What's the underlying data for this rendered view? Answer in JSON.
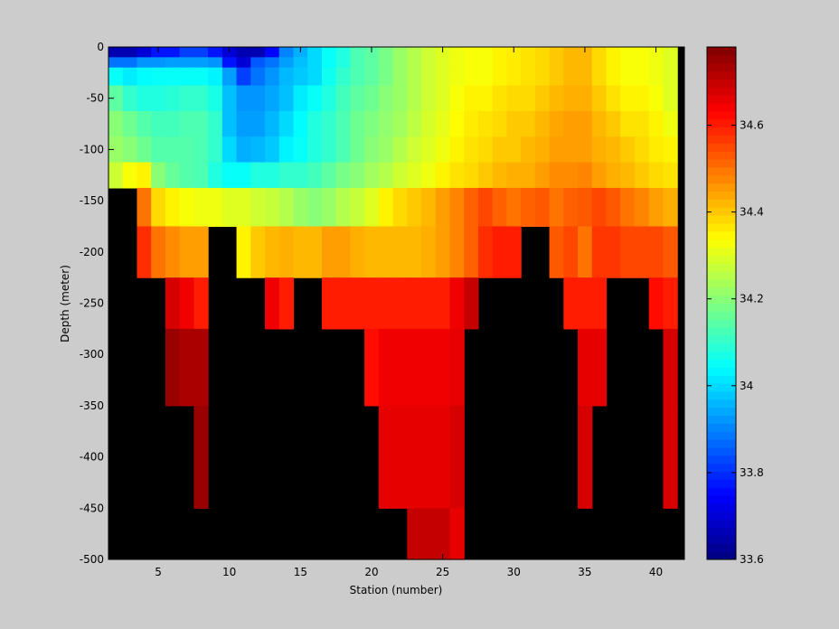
{
  "colors": {
    "figure_background": "#cccccc",
    "no_data": "#000000"
  },
  "colormap_name": "jet",
  "chart_data": {
    "type": "heatmap",
    "title": "",
    "xlabel": "Station (number)",
    "ylabel": "Depth (meter)",
    "xlim": [
      1.5,
      42
    ],
    "ylim": [
      -500,
      0
    ],
    "x_ticks": [
      5,
      10,
      15,
      20,
      25,
      30,
      35,
      40
    ],
    "y_ticks": [
      0,
      -50,
      -100,
      -150,
      -200,
      -250,
      -300,
      -350,
      -400,
      -450,
      -500
    ],
    "x_tick_labels": [
      "5",
      "10",
      "15",
      "20",
      "25",
      "30",
      "35",
      "40"
    ],
    "y_tick_labels": [
      "0",
      "-50",
      "-100",
      "-150",
      "-200",
      "-250",
      "-300",
      "-350",
      "-400",
      "-450",
      "-500"
    ],
    "grid": false,
    "colorbar": {
      "position": "right",
      "clim": [
        33.6,
        34.78
      ],
      "ticks": [
        33.6,
        33.8,
        34.0,
        34.2,
        34.4,
        34.6
      ],
      "tick_labels": [
        "33.6",
        "33.8",
        "34",
        "34.2",
        "34.4",
        "34.6"
      ]
    },
    "stations": [
      2,
      3,
      4,
      5,
      6,
      7,
      8,
      9,
      10,
      11,
      12,
      13,
      14,
      15,
      16,
      17,
      18,
      19,
      20,
      21,
      22,
      23,
      24,
      25,
      26,
      27,
      28,
      29,
      30,
      31,
      32,
      33,
      34,
      35,
      36,
      37,
      38,
      39,
      40,
      41
    ],
    "depths": [
      -5,
      -15,
      -25,
      -50,
      -75,
      -100,
      -125,
      -150,
      -200,
      -250,
      -300,
      -400,
      -500
    ],
    "values": [
      [
        33.66,
        33.66,
        33.7,
        33.77,
        33.77,
        33.82,
        33.82,
        33.77,
        33.7,
        33.66,
        33.66,
        33.75,
        33.9,
        33.95,
        34.0,
        34.05,
        34.08,
        34.13,
        34.15,
        34.18,
        34.22,
        34.25,
        34.28,
        34.3,
        34.32,
        34.33,
        34.33,
        34.35,
        34.36,
        34.37,
        34.38,
        34.4,
        34.42,
        34.42,
        34.38,
        34.35,
        34.33,
        34.33,
        34.32,
        34.3
      ],
      [
        33.88,
        33.88,
        33.92,
        33.92,
        33.93,
        33.93,
        33.93,
        33.92,
        33.77,
        33.7,
        33.85,
        33.88,
        33.93,
        33.97,
        34.0,
        34.05,
        34.08,
        34.13,
        34.15,
        34.18,
        34.22,
        34.25,
        34.28,
        34.3,
        34.32,
        34.33,
        34.33,
        34.35,
        34.36,
        34.37,
        34.38,
        34.4,
        34.42,
        34.42,
        34.38,
        34.35,
        34.33,
        34.33,
        34.32,
        34.3
      ],
      [
        34.05,
        34.02,
        34.04,
        34.05,
        34.05,
        34.05,
        34.05,
        34.03,
        33.93,
        33.82,
        33.88,
        33.92,
        33.96,
        33.98,
        34.0,
        34.06,
        34.1,
        34.13,
        34.15,
        34.18,
        34.22,
        34.25,
        34.28,
        34.3,
        34.32,
        34.33,
        34.33,
        34.35,
        34.36,
        34.37,
        34.38,
        34.4,
        34.42,
        34.42,
        34.38,
        34.35,
        34.33,
        34.33,
        34.32,
        34.3
      ],
      [
        34.15,
        34.1,
        34.08,
        34.08,
        34.09,
        34.1,
        34.1,
        34.07,
        33.97,
        33.92,
        33.92,
        33.94,
        33.97,
        34.02,
        34.05,
        34.08,
        34.12,
        34.15,
        34.17,
        34.2,
        34.22,
        34.25,
        34.28,
        34.3,
        34.33,
        34.35,
        34.35,
        34.37,
        34.38,
        34.38,
        34.4,
        34.42,
        34.43,
        34.43,
        34.4,
        34.37,
        34.35,
        34.35,
        34.33,
        34.3
      ],
      [
        34.2,
        34.17,
        34.14,
        34.12,
        34.12,
        34.13,
        34.13,
        34.1,
        33.97,
        33.93,
        33.93,
        33.96,
        34.0,
        34.04,
        34.08,
        34.1,
        34.13,
        34.17,
        34.19,
        34.21,
        34.23,
        34.26,
        34.29,
        34.31,
        34.34,
        34.36,
        34.37,
        34.38,
        34.4,
        34.4,
        34.42,
        34.44,
        34.45,
        34.45,
        34.42,
        34.4,
        34.37,
        34.37,
        34.35,
        34.32
      ],
      [
        34.22,
        34.2,
        34.17,
        34.14,
        34.14,
        34.14,
        34.13,
        34.1,
        34.0,
        33.95,
        33.96,
        33.98,
        34.03,
        34.05,
        34.08,
        34.1,
        34.13,
        34.17,
        34.2,
        34.22,
        34.25,
        34.28,
        34.3,
        34.32,
        34.35,
        34.37,
        34.38,
        34.4,
        34.4,
        34.42,
        34.43,
        34.45,
        34.45,
        34.45,
        34.43,
        34.42,
        34.4,
        34.38,
        34.36,
        34.35
      ],
      [
        34.28,
        34.33,
        34.35,
        34.2,
        34.16,
        34.14,
        34.13,
        34.08,
        34.05,
        34.05,
        34.08,
        34.08,
        34.1,
        34.1,
        34.12,
        34.15,
        34.18,
        34.2,
        34.23,
        34.25,
        34.28,
        34.3,
        34.32,
        34.35,
        34.37,
        34.38,
        34.4,
        34.42,
        34.43,
        34.43,
        34.45,
        34.47,
        34.47,
        34.48,
        34.45,
        34.43,
        34.42,
        34.4,
        34.38,
        34.37
      ],
      [
        null,
        null,
        34.5,
        34.38,
        34.35,
        34.33,
        34.32,
        34.32,
        34.3,
        34.3,
        34.28,
        34.27,
        34.25,
        34.22,
        34.2,
        34.22,
        34.25,
        34.27,
        34.3,
        34.35,
        34.38,
        34.4,
        34.42,
        34.45,
        34.48,
        34.52,
        34.55,
        34.52,
        34.5,
        34.52,
        34.53,
        34.5,
        34.52,
        34.53,
        34.55,
        34.53,
        34.5,
        34.48,
        34.45,
        34.43
      ],
      [
        null,
        null,
        34.58,
        34.5,
        34.47,
        34.45,
        34.45,
        null,
        null,
        34.35,
        34.4,
        34.42,
        34.43,
        34.42,
        34.42,
        34.45,
        34.45,
        34.43,
        34.42,
        34.42,
        34.42,
        34.42,
        34.43,
        34.45,
        34.48,
        34.52,
        34.58,
        34.6,
        34.6,
        null,
        null,
        34.53,
        34.55,
        34.5,
        34.57,
        34.57,
        34.55,
        34.55,
        34.55,
        34.53
      ],
      [
        null,
        null,
        null,
        null,
        34.68,
        34.65,
        34.6,
        null,
        null,
        null,
        null,
        34.65,
        34.6,
        null,
        null,
        34.6,
        34.6,
        34.6,
        34.6,
        34.6,
        34.6,
        34.6,
        34.6,
        34.6,
        34.65,
        34.7,
        null,
        null,
        null,
        null,
        null,
        null,
        34.6,
        34.6,
        34.6,
        null,
        null,
        null,
        34.62,
        34.6
      ],
      [
        null,
        null,
        null,
        null,
        34.75,
        34.73,
        34.73,
        null,
        null,
        null,
        null,
        null,
        null,
        null,
        null,
        null,
        null,
        null,
        34.62,
        34.65,
        34.65,
        34.65,
        34.65,
        34.65,
        34.66,
        null,
        null,
        null,
        null,
        null,
        null,
        null,
        null,
        34.66,
        34.66,
        null,
        null,
        null,
        null,
        34.68
      ],
      [
        null,
        null,
        null,
        null,
        null,
        null,
        34.75,
        null,
        null,
        null,
        null,
        null,
        null,
        null,
        null,
        null,
        null,
        null,
        null,
        34.66,
        34.66,
        34.66,
        34.66,
        34.66,
        34.68,
        null,
        null,
        null,
        null,
        null,
        null,
        null,
        null,
        34.68,
        null,
        null,
        null,
        null,
        null,
        34.68
      ],
      [
        null,
        null,
        null,
        null,
        null,
        null,
        null,
        null,
        null,
        null,
        null,
        null,
        null,
        null,
        null,
        null,
        null,
        null,
        null,
        null,
        null,
        34.7,
        34.7,
        34.7,
        34.66,
        null,
        null,
        null,
        null,
        null,
        null,
        null,
        null,
        null,
        null,
        null,
        null,
        null,
        null,
        null
      ]
    ]
  }
}
